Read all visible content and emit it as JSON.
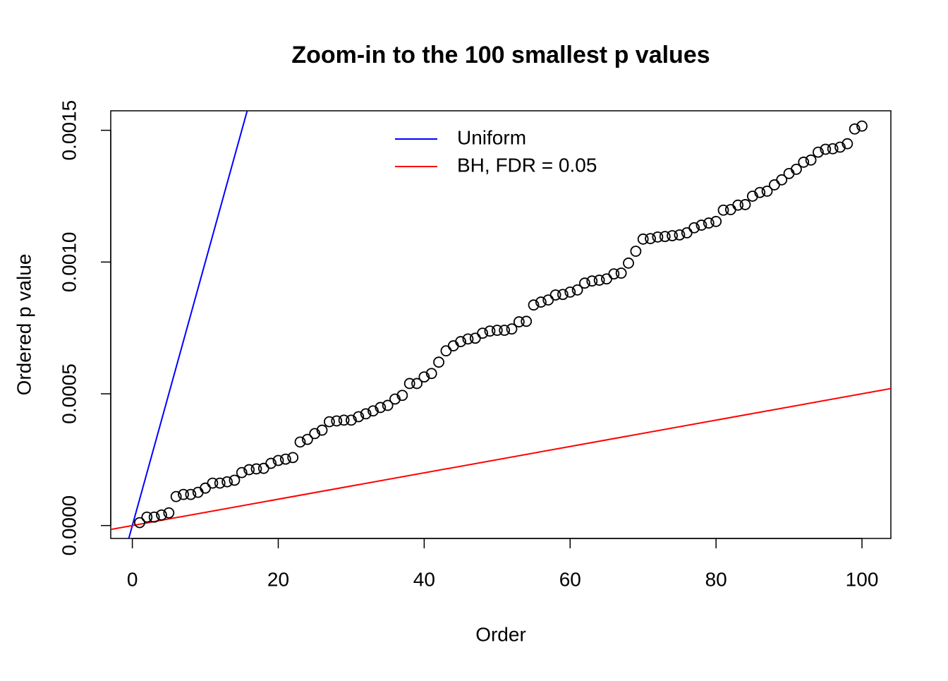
{
  "chart_data": {
    "type": "scatter",
    "title": "Zoom-in to the 100 smallest p values",
    "x_label": "Order",
    "y_label": "Ordered p value",
    "x": [
      1,
      2,
      3,
      4,
      5,
      6,
      7,
      8,
      9,
      10,
      11,
      12,
      13,
      14,
      15,
      16,
      17,
      18,
      19,
      20,
      21,
      22,
      23,
      24,
      25,
      26,
      27,
      28,
      29,
      30,
      31,
      32,
      33,
      34,
      35,
      36,
      37,
      38,
      39,
      40,
      41,
      42,
      43,
      44,
      45,
      46,
      47,
      48,
      49,
      50,
      51,
      52,
      53,
      54,
      55,
      56,
      57,
      58,
      59,
      60,
      61,
      62,
      63,
      64,
      65,
      66,
      67,
      68,
      69,
      70,
      71,
      72,
      73,
      74,
      75,
      76,
      77,
      78,
      79,
      80,
      81,
      82,
      83,
      84,
      85,
      86,
      87,
      88,
      89,
      90,
      91,
      92,
      93,
      94,
      95,
      96,
      97,
      98,
      99,
      100
    ],
    "values": [
      1.1e-05,
      3.2e-05,
      3.2e-05,
      4e-05,
      4.8e-05,
      0.00011,
      0.000118,
      0.000118,
      0.000126,
      0.000142,
      0.000161,
      0.000161,
      0.000166,
      0.000172,
      0.000201,
      0.000212,
      0.000215,
      0.000217,
      0.000236,
      0.000247,
      0.000252,
      0.000258,
      0.000317,
      0.000327,
      0.000349,
      0.000362,
      0.000394,
      0.000397,
      0.0004,
      0.0004,
      0.000413,
      0.000424,
      0.000435,
      0.000448,
      0.000456,
      0.00048,
      0.000494,
      0.000539,
      0.000539,
      0.000564,
      0.000577,
      0.00062,
      0.000663,
      0.000682,
      0.000698,
      0.000708,
      0.000711,
      0.00073,
      0.000738,
      0.000741,
      0.000741,
      0.000746,
      0.000773,
      0.000775,
      0.000837,
      0.000848,
      0.000856,
      0.000875,
      0.000877,
      0.000886,
      0.000894,
      0.00092,
      0.000928,
      0.000931,
      0.000936,
      0.000955,
      0.000958,
      0.000996,
      0.001041,
      0.001087,
      0.001089,
      0.001095,
      0.001097,
      0.0011,
      0.001103,
      0.001111,
      0.00113,
      0.00114,
      0.001148,
      0.001154,
      0.001197,
      0.001199,
      0.001216,
      0.001218,
      0.00125,
      0.001264,
      0.001269,
      0.001293,
      0.001312,
      0.001336,
      0.001352,
      0.001379,
      0.001387,
      0.001417,
      0.001428,
      0.00143,
      0.001436,
      0.001449,
      0.001505,
      0.001516
    ],
    "color": "#000000",
    "lines": [
      {
        "name": "Uniform",
        "color": "#0000ff",
        "slope": 0.0001,
        "intercept": 0
      },
      {
        "name": "BH, FDR = 0.05",
        "color": "#ff0000",
        "slope": 5e-06,
        "intercept": 0
      }
    ],
    "xlim": [
      -2.96,
      103.96
    ],
    "ylim": [
      -4.9e-05,
      0.001574
    ],
    "xticks": [
      0,
      20,
      40,
      60,
      80,
      100
    ],
    "yticks": [
      {
        "value": 0,
        "label": "0.0000"
      },
      {
        "value": 0.0005,
        "label": "0.0005"
      },
      {
        "value": 0.001,
        "label": "0.0010"
      },
      {
        "value": 0.0015,
        "label": "0.0015"
      }
    ],
    "legend": "top"
  }
}
